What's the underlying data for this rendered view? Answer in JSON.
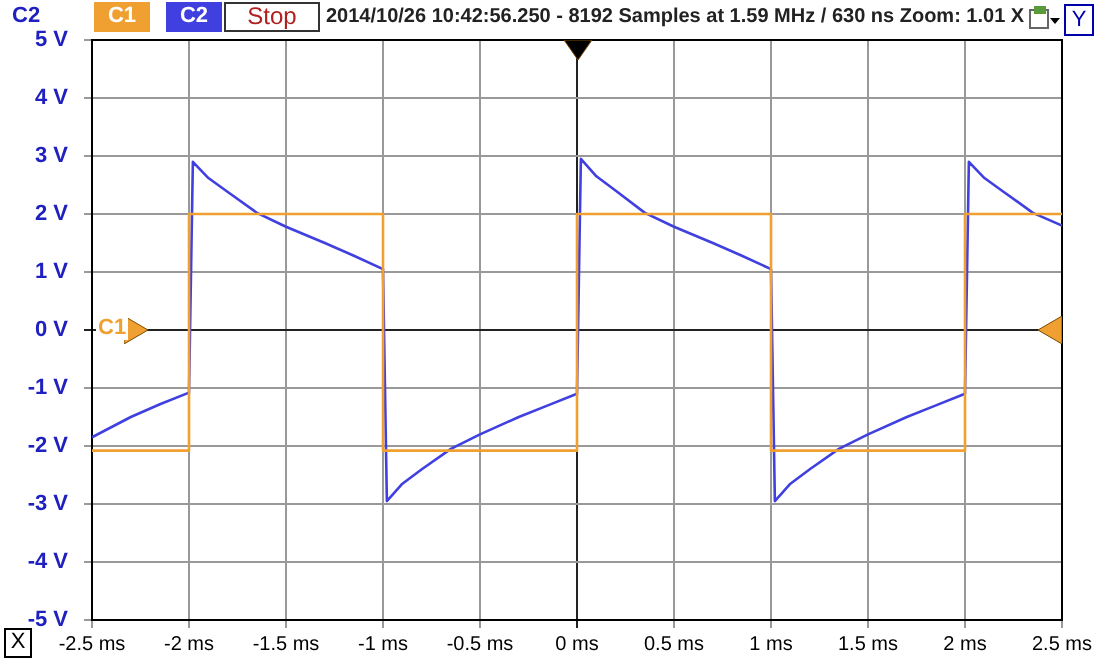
{
  "chart_data": {
    "type": "line",
    "ylabel": "C2",
    "legend": "top left",
    "grid": true,
    "marker": "none",
    "line_style": "solid",
    "xlim": [
      -2.5,
      2.5
    ],
    "xticks": [
      {
        "value": -2.5,
        "label": "-2.5 ms"
      },
      {
        "value": -2,
        "label": "-2 ms"
      },
      {
        "value": -1.5,
        "label": "-1.5 ms"
      },
      {
        "value": -1,
        "label": "-1 ms"
      },
      {
        "value": -0.5,
        "label": "-0.5 ms"
      },
      {
        "value": 0,
        "label": "0 ms"
      },
      {
        "value": 0.5,
        "label": "0.5 ms"
      },
      {
        "value": 1,
        "label": "1 ms"
      },
      {
        "value": 1.5,
        "label": "1.5 ms"
      },
      {
        "value": 2,
        "label": "2 ms"
      },
      {
        "value": 2.5,
        "label": "2.5 ms"
      }
    ],
    "ylim": [
      -5,
      5
    ],
    "yticks": [
      {
        "value": -5,
        "label": "-5 V"
      },
      {
        "value": -4,
        "label": "-4 V"
      },
      {
        "value": -3,
        "label": "-3 V"
      },
      {
        "value": -2,
        "label": "-2 V"
      },
      {
        "value": -1,
        "label": "-1 V"
      },
      {
        "value": 0,
        "label": "0 V"
      },
      {
        "value": 1,
        "label": "1 V"
      },
      {
        "value": 2,
        "label": "2 V"
      },
      {
        "value": 3,
        "label": "3 V"
      },
      {
        "value": 4,
        "label": "4 V"
      },
      {
        "value": 5,
        "label": "5 V"
      }
    ],
    "series": [
      {
        "name": "C1",
        "color": "#f0a030",
        "x": [
          -2.5,
          -2,
          -2,
          -1,
          -1,
          0,
          0,
          1,
          1,
          2,
          2,
          2.5
        ],
        "values": [
          -2.08,
          -2.08,
          2,
          2,
          -2.08,
          -2.08,
          2,
          2,
          -2.08,
          -2.08,
          2,
          2
        ]
      },
      {
        "name": "C2",
        "color": "#4040e0",
        "x": [
          -2.5,
          -2.3,
          -2.15,
          -2.0,
          -1.98,
          -1.9,
          -1.8,
          -1.65,
          -1.5,
          -1.3,
          -1.15,
          -1.0,
          -0.98,
          -0.9,
          -0.8,
          -0.65,
          -0.5,
          -0.3,
          -0.15,
          0,
          0.02,
          0.1,
          0.2,
          0.35,
          0.5,
          0.7,
          0.85,
          1.0,
          1.02,
          1.1,
          1.2,
          1.35,
          1.5,
          1.7,
          1.85,
          2.0,
          2.02,
          2.1,
          2.2,
          2.35,
          2.5
        ],
        "values": [
          -1.85,
          -1.5,
          -1.28,
          -1.08,
          2.9,
          2.62,
          2.38,
          2.02,
          1.78,
          1.5,
          1.28,
          1.05,
          -2.95,
          -2.65,
          -2.4,
          -2.05,
          -1.8,
          -1.5,
          -1.3,
          -1.1,
          2.95,
          2.65,
          2.4,
          2.02,
          1.78,
          1.5,
          1.28,
          1.05,
          -2.95,
          -2.65,
          -2.4,
          -2.05,
          -1.8,
          -1.5,
          -1.3,
          -1.1,
          2.9,
          2.62,
          2.38,
          2.02,
          1.8
        ]
      }
    ],
    "annotations": [
      "Stop",
      "2014/10/26 10:42:56.250 - 8192 Samples at 1.59 MHz / 630 ns Zoom: 1.01 X",
      "X",
      "Y"
    ]
  }
}
